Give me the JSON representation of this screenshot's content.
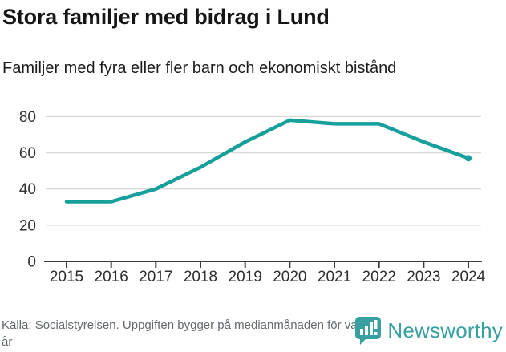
{
  "header": {
    "title": "Stora familjer med bidrag i Lund",
    "subtitle": "Familjer med fyra eller fler barn och ekonomiskt bistånd"
  },
  "chart_data": {
    "type": "line",
    "title": "Stora familjer med bidrag i Lund",
    "subtitle": "Familjer med fyra eller fler barn och ekonomiskt bistånd",
    "x": [
      2015,
      2016,
      2017,
      2018,
      2019,
      2020,
      2021,
      2022,
      2023,
      2024
    ],
    "series": [
      {
        "name": "Familjer med fyra eller fler barn och ekonomiskt bistånd",
        "values": [
          33,
          33,
          40,
          52,
          66,
          78,
          76,
          76,
          66,
          57
        ]
      }
    ],
    "ylim": [
      0,
      80
    ],
    "yticks": [
      0,
      20,
      40,
      60,
      80
    ],
    "grid": "horizontal",
    "legend": "none",
    "xlabel": "",
    "ylabel": ""
  },
  "footer": {
    "source": "Källa: Socialstyrelsen. Uppgiften bygger på medianmånaden för varje år",
    "brand": "Newsworthy"
  },
  "colors": {
    "line": "#17a09b",
    "grid": "#d9d9d9",
    "axis": "#3d3d3d",
    "tick_label": "#333333",
    "brand_teal": "#38a0a0",
    "title_text": "#151515",
    "source_text": "#646a6d"
  },
  "icons": {
    "logo": "newsworthy-bar-chart-bubble-icon"
  }
}
